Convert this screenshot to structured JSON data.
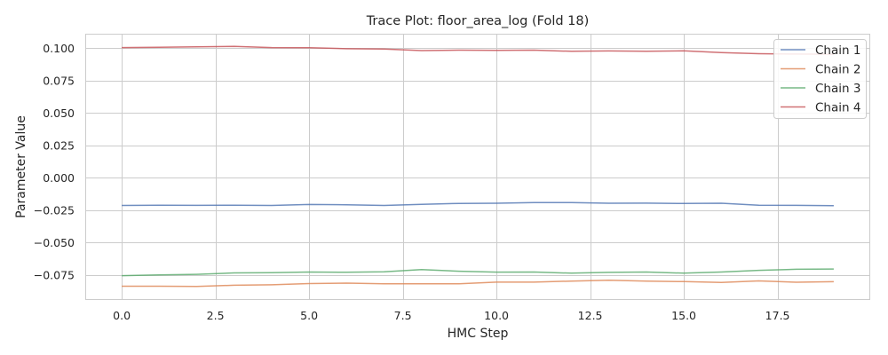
{
  "chart_data": {
    "type": "line",
    "title": "Trace Plot: floor_area_log (Fold 18)",
    "xlabel": "HMC Step",
    "ylabel": "Parameter Value",
    "xlim": [
      -0.95,
      19.95
    ],
    "ylim": [
      -0.0935,
      0.1105
    ],
    "xticks": [
      0.0,
      2.5,
      5.0,
      7.5,
      10.0,
      12.5,
      15.0,
      17.5
    ],
    "xtick_labels": [
      "0.0",
      "2.5",
      "5.0",
      "7.5",
      "10.0",
      "12.5",
      "15.0",
      "17.5"
    ],
    "yticks": [
      0.1,
      0.075,
      0.05,
      0.025,
      0.0,
      -0.025,
      -0.05,
      -0.075
    ],
    "ytick_labels": [
      "0.100",
      "0.075",
      "0.050",
      "0.025",
      "0.000",
      "−0.025",
      "−0.050",
      "−0.075"
    ],
    "grid": true,
    "legend_position": "top-right",
    "x": [
      0,
      1,
      2,
      3,
      4,
      5,
      6,
      7,
      8,
      9,
      10,
      11,
      12,
      13,
      14,
      15,
      16,
      17,
      18,
      19
    ],
    "series": [
      {
        "name": "Chain 1",
        "color": "#4c72b0",
        "values": [
          -0.0213,
          -0.0211,
          -0.0212,
          -0.0211,
          -0.0213,
          -0.0205,
          -0.0207,
          -0.0213,
          -0.0204,
          -0.0197,
          -0.0196,
          -0.0191,
          -0.019,
          -0.0196,
          -0.0195,
          -0.0198,
          -0.0196,
          -0.0211,
          -0.0212,
          -0.0215
        ]
      },
      {
        "name": "Chain 2",
        "color": "#dd8452",
        "values": [
          -0.0836,
          -0.0836,
          -0.0837,
          -0.0828,
          -0.0825,
          -0.0815,
          -0.0812,
          -0.0817,
          -0.0817,
          -0.0817,
          -0.0804,
          -0.0804,
          -0.0796,
          -0.0789,
          -0.0797,
          -0.08,
          -0.0806,
          -0.0795,
          -0.0805,
          -0.0801
        ]
      },
      {
        "name": "Chain 3",
        "color": "#55a868",
        "values": [
          -0.0754,
          -0.0749,
          -0.0744,
          -0.0733,
          -0.0731,
          -0.0726,
          -0.0728,
          -0.0724,
          -0.0708,
          -0.072,
          -0.0727,
          -0.0726,
          -0.0735,
          -0.0729,
          -0.0726,
          -0.0735,
          -0.0726,
          -0.0713,
          -0.0705,
          -0.0703
        ]
      },
      {
        "name": "Chain 4",
        "color": "#c44e52",
        "values": [
          0.1005,
          0.1008,
          0.1011,
          0.1014,
          0.1005,
          0.1004,
          0.0996,
          0.0994,
          0.0982,
          0.0985,
          0.0983,
          0.0985,
          0.0976,
          0.0979,
          0.0976,
          0.098,
          0.0966,
          0.0958,
          0.0955,
          0.0954
        ]
      }
    ]
  }
}
